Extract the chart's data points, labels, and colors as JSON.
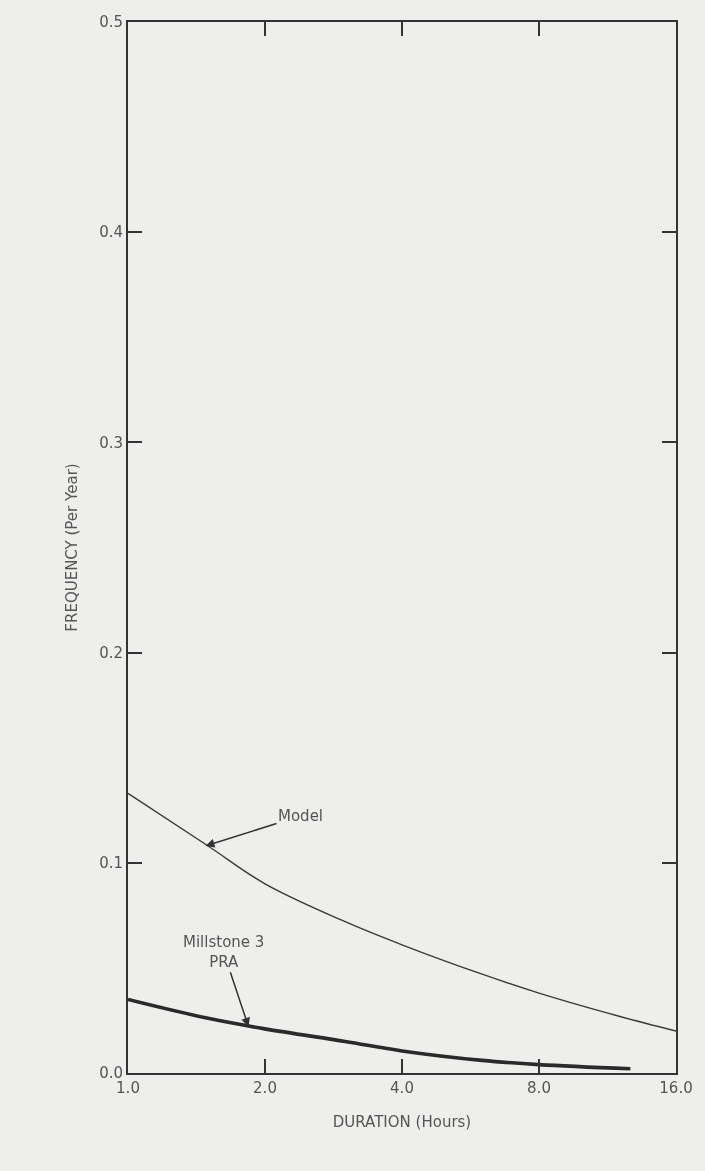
{
  "chart_data": {
    "type": "line",
    "xlabel": "DURATION (Hours)",
    "ylabel": "FREQUENCY (Per Year)",
    "log": "x",
    "xlim": [
      1,
      16
    ],
    "xticks": [
      {
        "value": 1,
        "label": "1.0"
      },
      {
        "value": 2,
        "label": "2.0"
      },
      {
        "value": 4,
        "label": "4.0"
      },
      {
        "value": 8,
        "label": "8.0"
      },
      {
        "value": 16,
        "label": "16.0"
      }
    ],
    "ylim": [
      0,
      0.5
    ],
    "yticks": [
      {
        "value": 0,
        "label": "0.0"
      },
      {
        "value": 0.1,
        "label": "0.1"
      },
      {
        "value": 0.2,
        "label": "0.2"
      },
      {
        "value": 0.3,
        "label": "0.3"
      },
      {
        "value": 0.4,
        "label": "0.4"
      },
      {
        "value": 0.5,
        "label": "0.5"
      }
    ],
    "grid": false,
    "marker": "none",
    "line_style": "solid",
    "series": [
      {
        "color": "#3a3a3a",
        "x": [
          1,
          1.5,
          2,
          3,
          4,
          6,
          8,
          12,
          16
        ],
        "values": [
          0.133,
          0.108,
          0.09,
          0.072,
          0.061,
          0.047,
          0.038,
          0.027,
          0.02
        ]
      },
      {
        "color": "#2a2a2a",
        "x": [
          1,
          1.5,
          2,
          3,
          4,
          6,
          8,
          12.7
        ],
        "values": [
          0.035,
          0.026,
          0.021,
          0.015,
          0.0105,
          0.006,
          0.004,
          0.002
        ]
      }
    ],
    "annotations": [
      {
        "text": "Model",
        "x": 1.48,
        "y": 0.108
      },
      {
        "text": "Millstone 3\nPRA",
        "x": 1.84,
        "y": 0.022
      }
    ]
  }
}
